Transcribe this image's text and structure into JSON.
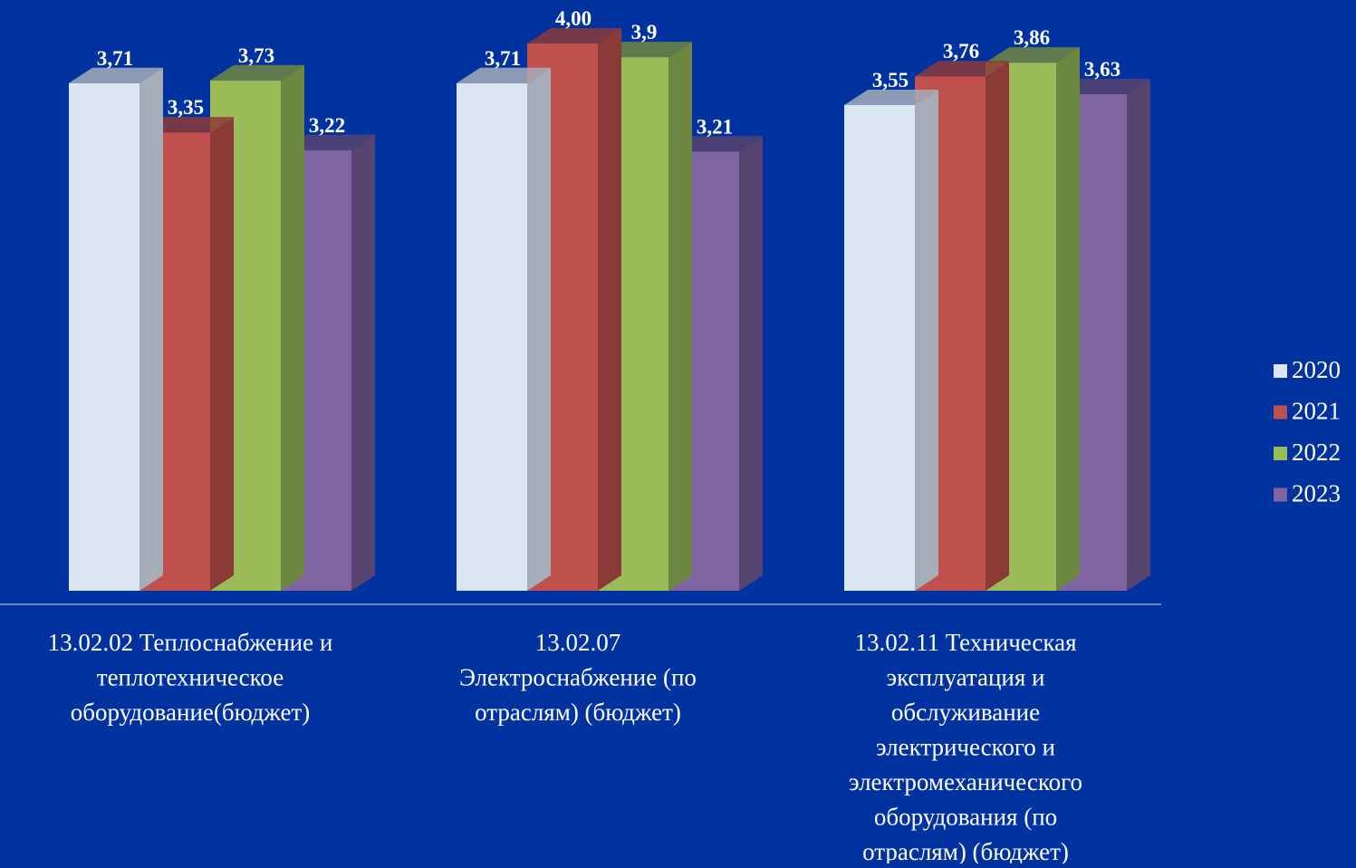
{
  "chart_data": {
    "type": "bar",
    "style": "3d-clustered-columns",
    "categories": [
      "13.02.02 Теплоснабжение и теплотехническое оборудование(бюджет)",
      "13.02.07 Электроснабжение (по отраслям) (бюджет)",
      "13.02.11 Техническая эксплуатация и обслуживание электрического и электромеханического оборудования (по отраслям) (бюджет)"
    ],
    "category_label_lines": [
      [
        "13.02.02 Теплоснабжение и",
        "теплотехническое",
        "оборудование(бюджет)"
      ],
      [
        "13.02.07",
        "Электроснабжение (по",
        "отраслям) (бюджет)"
      ],
      [
        "13.02.11 Техническая",
        "эксплуатация и",
        "обслуживание",
        "электрического и",
        "электромеханического",
        "оборудования (по",
        "отраслям) (бюджет)"
      ]
    ],
    "series": [
      {
        "name": "2020",
        "values": [
          3.71,
          3.71,
          3.55
        ],
        "labels": [
          "3,71",
          "3,71",
          "3,55"
        ],
        "color": "#dce6f2",
        "color_dark": "#a6adb8"
      },
      {
        "name": "2021",
        "values": [
          3.35,
          4.0,
          3.76
        ],
        "labels": [
          "3,35",
          "4,00",
          "3,76"
        ],
        "color": "#c0504d",
        "color_dark": "#8c3a38"
      },
      {
        "name": "2022",
        "values": [
          3.73,
          3.9,
          3.86
        ],
        "labels": [
          "3,73",
          "3,9",
          "3,86"
        ],
        "color": "#9bbb59",
        "color_dark": "#6e8740"
      },
      {
        "name": "2023",
        "values": [
          3.22,
          3.21,
          3.63
        ],
        "labels": [
          "3,22",
          "3,21",
          "3,63"
        ],
        "color": "#8064a2",
        "color_dark": "#56436f"
      }
    ],
    "title": "",
    "xlabel": "",
    "ylabel": "",
    "ylim": [
      0,
      4.0
    ],
    "grid": false,
    "legend": "right",
    "background": "#0033a0",
    "axis_color": "#6f86c4",
    "text_color": "#ffffff"
  }
}
